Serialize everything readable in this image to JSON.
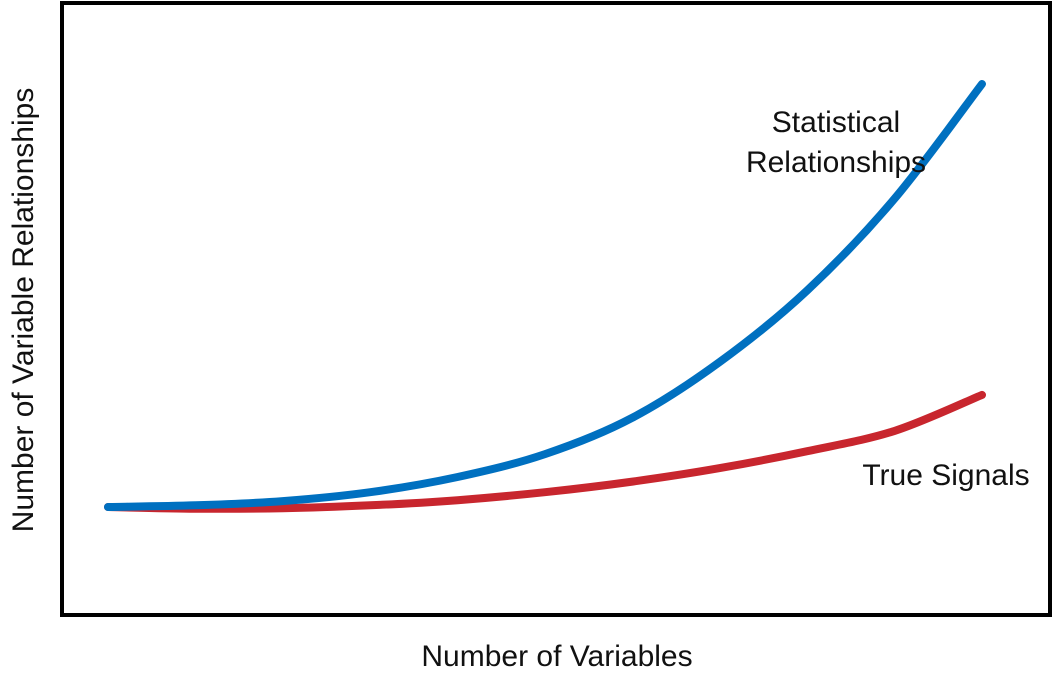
{
  "chart_data": {
    "type": "line",
    "title": "",
    "xlabel": "Number of Variables",
    "ylabel": "Number of Variable Relationships",
    "grid": false,
    "legend": "none",
    "axes_ticks": "none",
    "series": [
      {
        "color": "#0070c0",
        "annotation": [
          "Statistical",
          "Relationships"
        ],
        "x": [
          0,
          0.1,
          0.2,
          0.3,
          0.4,
          0.5,
          0.6,
          0.7,
          0.8,
          0.9,
          1.0
        ],
        "y": [
          0,
          0.004,
          0.014,
          0.035,
          0.071,
          0.125,
          0.211,
          0.343,
          0.512,
          0.729,
          1.0
        ]
      },
      {
        "color": "#c8262e",
        "annotation": [
          "True Signals"
        ],
        "x": [
          0,
          0.1,
          0.2,
          0.3,
          0.4,
          0.5,
          0.6,
          0.7,
          0.8,
          0.9,
          1.0
        ],
        "y": [
          0,
          -0.004,
          -0.003,
          0.004,
          0.016,
          0.035,
          0.06,
          0.092,
          0.132,
          0.18,
          0.265
        ]
      }
    ]
  }
}
